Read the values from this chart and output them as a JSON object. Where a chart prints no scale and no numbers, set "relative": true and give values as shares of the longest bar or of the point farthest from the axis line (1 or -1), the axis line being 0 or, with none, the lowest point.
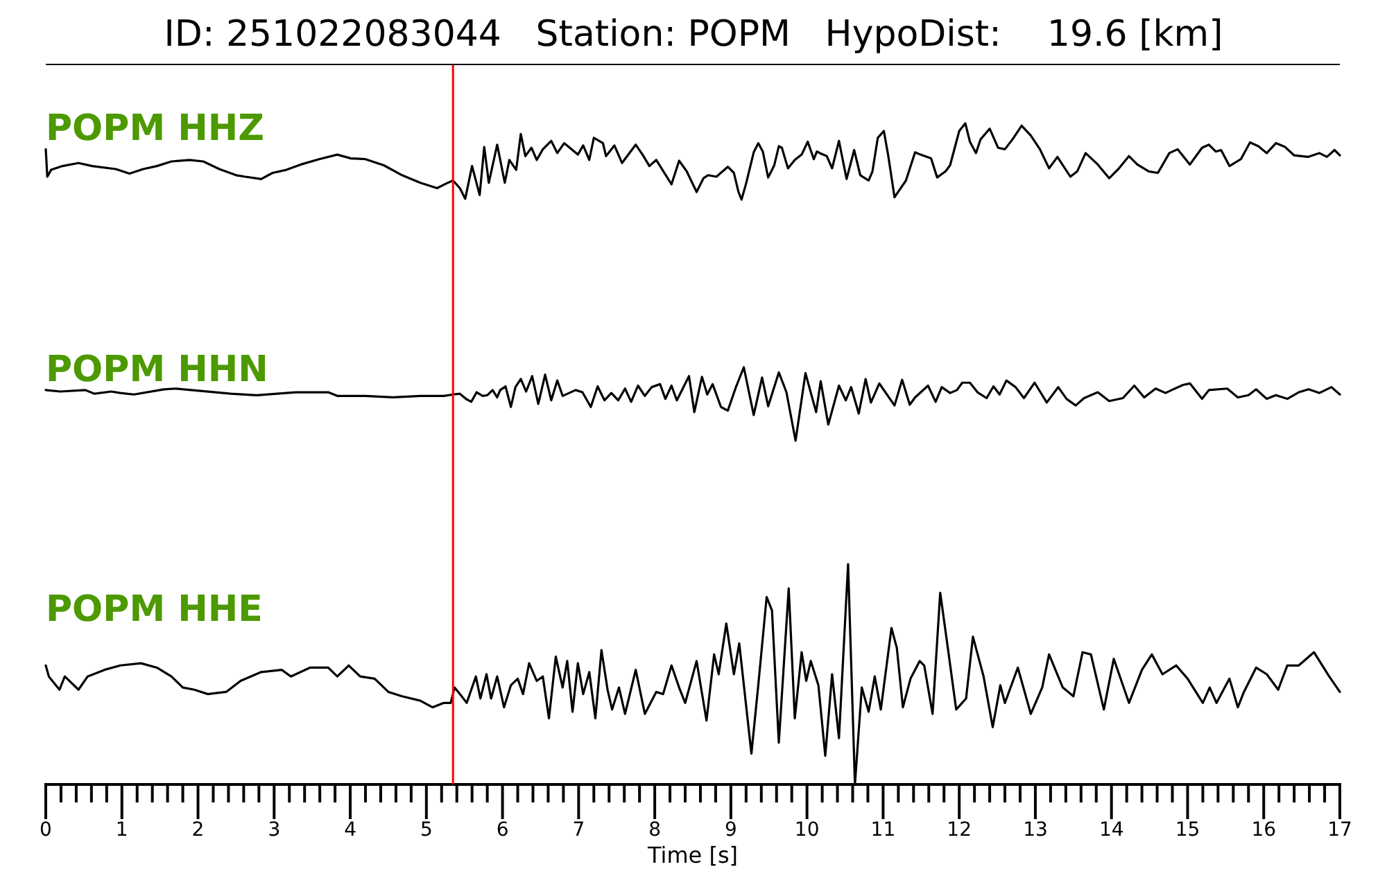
{
  "chart_data": [
    {
      "type": "line",
      "title": "ID: 251022083044   Station: POPM   HypoDist:    19.6 [km]",
      "relative": true,
      "xlim": [
        0,
        17
      ],
      "tick_labels": false,
      "ref_lines": [
        {
          "axis": "x",
          "value": 5.35,
          "color": "#ff0000"
        }
      ],
      "series": [
        {
          "name": "POPM HHZ",
          "color": "#000000",
          "x": [
            0,
            0.02,
            0.07,
            0.22,
            0.43,
            0.61,
            0.92,
            1.1,
            1.28,
            1.46,
            1.65,
            1.89,
            2.07,
            2.28,
            2.5,
            2.62,
            2.83,
            2.98,
            3.16,
            3.35,
            3.59,
            3.83,
            4.01,
            4.2,
            4.44,
            4.68,
            4.92,
            5.14,
            5.26,
            5.35,
            5.44,
            5.51,
            5.6,
            5.7,
            5.76,
            5.82,
            5.93,
            6.03,
            6.09,
            6.18,
            6.24,
            6.3,
            6.38,
            6.45,
            6.53,
            6.64,
            6.72,
            6.81,
            6.99,
            7.06,
            7.14,
            7.2,
            7.32,
            7.36,
            7.47,
            7.57,
            7.75,
            7.84,
            7.93,
            8.02,
            8.22,
            8.32,
            8.42,
            8.55,
            8.64,
            8.7,
            8.81,
            8.96,
            9.04,
            9.1,
            9.14,
            9.2,
            9.3,
            9.36,
            9.42,
            9.49,
            9.57,
            9.63,
            9.67,
            9.75,
            9.84,
            9.93,
            10.01,
            10.09,
            10.13,
            10.19,
            10.26,
            10.33,
            10.42,
            10.52,
            10.62,
            10.7,
            10.81,
            10.86,
            10.93,
            11.01,
            11.07,
            11.15,
            11.21,
            11.3,
            11.42,
            11.49,
            11.63,
            11.71,
            11.82,
            11.88,
            12.0,
            12.08,
            12.14,
            12.22,
            12.28,
            12.4,
            12.51,
            12.6,
            12.7,
            12.82,
            12.94,
            13.06,
            13.18,
            13.29,
            13.46,
            13.55,
            13.66,
            13.82,
            13.97,
            14.09,
            14.23,
            14.34,
            14.49,
            14.61,
            14.76,
            14.87,
            15.03,
            15.19,
            15.28,
            15.37,
            15.44,
            15.55,
            15.7,
            15.82,
            15.93,
            16.04,
            16.16,
            16.28,
            16.4,
            16.58,
            16.73,
            16.83,
            16.93,
            17
          ],
          "values": [
            0.66,
            0.3,
            0.39,
            0.44,
            0.48,
            0.44,
            0.4,
            0.34,
            0.4,
            0.44,
            0.5,
            0.52,
            0.5,
            0.4,
            0.32,
            0.3,
            0.27,
            0.35,
            0.39,
            0.46,
            0.53,
            0.59,
            0.54,
            0.53,
            0.45,
            0.32,
            0.22,
            0.15,
            0.21,
            0.25,
            0.15,
            0.01,
            0.44,
            0.06,
            0.69,
            0.22,
            0.72,
            0.22,
            0.52,
            0.39,
            0.86,
            0.57,
            0.68,
            0.52,
            0.66,
            0.77,
            0.61,
            0.74,
            0.59,
            0.71,
            0.52,
            0.81,
            0.74,
            0.57,
            0.71,
            0.48,
            0.72,
            0.59,
            0.44,
            0.52,
            0.2,
            0.51,
            0.37,
            0.1,
            0.28,
            0.32,
            0.3,
            0.43,
            0.35,
            0.1,
            0.0,
            0.21,
            0.62,
            0.74,
            0.63,
            0.29,
            0.45,
            0.7,
            0.68,
            0.41,
            0.52,
            0.59,
            0.76,
            0.53,
            0.63,
            0.6,
            0.57,
            0.41,
            0.77,
            0.27,
            0.65,
            0.32,
            0.25,
            0.37,
            0.81,
            0.9,
            0.56,
            0.03,
            0.12,
            0.25,
            0.62,
            0.59,
            0.54,
            0.29,
            0.37,
            0.45,
            0.9,
            1.0,
            0.76,
            0.61,
            0.79,
            0.93,
            0.68,
            0.66,
            0.79,
            0.97,
            0.84,
            0.66,
            0.41,
            0.56,
            0.3,
            0.37,
            0.61,
            0.46,
            0.28,
            0.4,
            0.57,
            0.46,
            0.37,
            0.35,
            0.61,
            0.66,
            0.46,
            0.68,
            0.72,
            0.63,
            0.65,
            0.44,
            0.53,
            0.75,
            0.7,
            0.61,
            0.74,
            0.69,
            0.58,
            0.56,
            0.61,
            0.56,
            0.65,
            0.58
          ]
        }
      ]
    },
    {
      "type": "line",
      "relative": true,
      "xlim": [
        0,
        17
      ],
      "tick_labels": false,
      "ref_lines": [
        {
          "axis": "x",
          "value": 5.35,
          "color": "#ff0000"
        }
      ],
      "series": [
        {
          "name": "POPM HHN",
          "color": "#000000",
          "x": [
            0,
            0.19,
            0.52,
            0.64,
            0.86,
            0.98,
            1.16,
            1.55,
            1.71,
            2.01,
            2.43,
            2.77,
            3.28,
            3.71,
            3.83,
            4.2,
            4.56,
            4.92,
            5.23,
            5.35,
            5.44,
            5.52,
            5.59,
            5.66,
            5.74,
            5.8,
            5.87,
            5.93,
            5.97,
            6.04,
            6.11,
            6.17,
            6.24,
            6.31,
            6.39,
            6.47,
            6.56,
            6.64,
            6.72,
            6.79,
            6.96,
            7.05,
            7.16,
            7.25,
            7.34,
            7.43,
            7.52,
            7.61,
            7.69,
            7.78,
            7.87,
            7.96,
            8.07,
            8.14,
            8.22,
            8.29,
            8.45,
            8.52,
            8.62,
            8.69,
            8.76,
            8.87,
            8.96,
            9.07,
            9.17,
            9.3,
            9.41,
            9.49,
            9.63,
            9.73,
            9.85,
            9.98,
            10.12,
            10.18,
            10.28,
            10.42,
            10.51,
            10.58,
            10.68,
            10.77,
            10.84,
            10.95,
            11.15,
            11.25,
            11.35,
            11.42,
            11.59,
            11.69,
            11.77,
            11.88,
            11.97,
            12.04,
            12.14,
            12.24,
            12.36,
            12.45,
            12.53,
            12.62,
            12.74,
            12.85,
            12.99,
            13.15,
            13.3,
            13.41,
            13.53,
            13.64,
            13.82,
            13.97,
            14.15,
            14.3,
            14.43,
            14.58,
            14.71,
            14.79,
            14.94,
            15.03,
            15.19,
            15.28,
            15.52,
            15.66,
            15.8,
            15.9,
            16.04,
            16.16,
            16.31,
            16.46,
            16.59,
            16.73,
            16.89,
            17
          ],
          "values": [
            0.69,
            0.67,
            0.69,
            0.64,
            0.67,
            0.65,
            0.63,
            0.7,
            0.71,
            0.68,
            0.64,
            0.62,
            0.66,
            0.66,
            0.61,
            0.61,
            0.59,
            0.61,
            0.61,
            0.63,
            0.64,
            0.57,
            0.53,
            0.66,
            0.61,
            0.62,
            0.69,
            0.59,
            0.69,
            0.74,
            0.46,
            0.73,
            0.84,
            0.67,
            0.88,
            0.5,
            0.9,
            0.55,
            0.82,
            0.61,
            0.69,
            0.66,
            0.46,
            0.74,
            0.55,
            0.65,
            0.55,
            0.71,
            0.53,
            0.75,
            0.61,
            0.73,
            0.77,
            0.57,
            0.75,
            0.55,
            0.88,
            0.39,
            0.87,
            0.63,
            0.77,
            0.46,
            0.41,
            0.74,
            1.0,
            0.35,
            0.86,
            0.47,
            0.93,
            0.66,
            0.0,
            0.92,
            0.39,
            0.81,
            0.22,
            0.75,
            0.55,
            0.73,
            0.37,
            0.84,
            0.52,
            0.78,
            0.48,
            0.83,
            0.49,
            0.59,
            0.75,
            0.53,
            0.73,
            0.65,
            0.69,
            0.79,
            0.79,
            0.66,
            0.58,
            0.74,
            0.63,
            0.82,
            0.73,
            0.58,
            0.79,
            0.52,
            0.73,
            0.57,
            0.48,
            0.58,
            0.66,
            0.54,
            0.58,
            0.75,
            0.59,
            0.71,
            0.65,
            0.69,
            0.76,
            0.78,
            0.57,
            0.69,
            0.71,
            0.59,
            0.62,
            0.7,
            0.57,
            0.62,
            0.57,
            0.66,
            0.7,
            0.65,
            0.73,
            0.63
          ]
        }
      ]
    },
    {
      "type": "line",
      "relative": true,
      "xlabel": "Time [s]",
      "xlim": [
        0,
        17
      ],
      "tick_labels": "x",
      "xticks": [
        0,
        {
          "value": 0.2,
          "label": null
        },
        {
          "value": 0.4,
          "label": null
        },
        {
          "value": 0.6,
          "label": null
        },
        {
          "value": 0.8,
          "label": null
        },
        1,
        {
          "value": 1.2,
          "label": null
        },
        {
          "value": 1.4,
          "label": null
        },
        {
          "value": 1.6,
          "label": null
        },
        {
          "value": 1.8,
          "label": null
        },
        2,
        {
          "value": 2.2,
          "label": null
        },
        {
          "value": 2.4,
          "label": null
        },
        {
          "value": 2.6,
          "label": null
        },
        {
          "value": 2.8,
          "label": null
        },
        3,
        {
          "value": 3.2,
          "label": null
        },
        {
          "value": 3.4,
          "label": null
        },
        {
          "value": 3.6,
          "label": null
        },
        {
          "value": 3.8,
          "label": null
        },
        4,
        {
          "value": 4.2,
          "label": null
        },
        {
          "value": 4.4,
          "label": null
        },
        {
          "value": 4.6,
          "label": null
        },
        {
          "value": 4.8,
          "label": null
        },
        5,
        {
          "value": 5.2,
          "label": null
        },
        {
          "value": 5.4,
          "label": null
        },
        {
          "value": 5.6,
          "label": null
        },
        {
          "value": 5.8,
          "label": null
        },
        6,
        {
          "value": 6.2,
          "label": null
        },
        {
          "value": 6.4,
          "label": null
        },
        {
          "value": 6.6,
          "label": null
        },
        {
          "value": 6.8,
          "label": null
        },
        7,
        {
          "value": 7.2,
          "label": null
        },
        {
          "value": 7.4,
          "label": null
        },
        {
          "value": 7.6,
          "label": null
        },
        {
          "value": 7.8,
          "label": null
        },
        8,
        {
          "value": 8.2,
          "label": null
        },
        {
          "value": 8.4,
          "label": null
        },
        {
          "value": 8.6,
          "label": null
        },
        {
          "value": 8.8,
          "label": null
        },
        9,
        {
          "value": 9.2,
          "label": null
        },
        {
          "value": 9.4,
          "label": null
        },
        {
          "value": 9.6,
          "label": null
        },
        {
          "value": 9.8,
          "label": null
        },
        10,
        {
          "value": 10.2,
          "label": null
        },
        {
          "value": 10.4,
          "label": null
        },
        {
          "value": 10.6,
          "label": null
        },
        {
          "value": 10.8,
          "label": null
        },
        11,
        {
          "value": 11.2,
          "label": null
        },
        {
          "value": 11.4,
          "label": null
        },
        {
          "value": 11.6,
          "label": null
        },
        {
          "value": 11.8,
          "label": null
        },
        12,
        {
          "value": 12.2,
          "label": null
        },
        {
          "value": 12.4,
          "label": null
        },
        {
          "value": 12.6,
          "label": null
        },
        {
          "value": 12.8,
          "label": null
        },
        13,
        {
          "value": 13.2,
          "label": null
        },
        {
          "value": 13.4,
          "label": null
        },
        {
          "value": 13.6,
          "label": null
        },
        {
          "value": 13.8,
          "label": null
        },
        14,
        {
          "value": 14.2,
          "label": null
        },
        {
          "value": 14.4,
          "label": null
        },
        {
          "value": 14.6,
          "label": null
        },
        {
          "value": 14.8,
          "label": null
        },
        15,
        {
          "value": 15.2,
          "label": null
        },
        {
          "value": 15.4,
          "label": null
        },
        {
          "value": 15.6,
          "label": null
        },
        {
          "value": 15.8,
          "label": null
        },
        16,
        {
          "value": 16.2,
          "label": null
        },
        {
          "value": 16.4,
          "label": null
        },
        {
          "value": 16.6,
          "label": null
        },
        {
          "value": 16.8,
          "label": null
        },
        17
      ],
      "ref_lines": [
        {
          "axis": "x",
          "value": 5.35,
          "color": "#ff0000"
        }
      ],
      "series": [
        {
          "name": "POPM HHE",
          "color": "#000000",
          "x": [
            0,
            0.04,
            0.18,
            0.25,
            0.43,
            0.55,
            0.77,
            0.98,
            1.25,
            1.46,
            1.65,
            1.8,
            1.95,
            2.13,
            2.37,
            2.56,
            2.83,
            3.1,
            3.22,
            3.47,
            3.71,
            3.83,
            3.98,
            4.13,
            4.32,
            4.5,
            4.68,
            4.92,
            5.08,
            5.23,
            5.32,
            5.37,
            5.44,
            5.53,
            5.65,
            5.71,
            5.79,
            5.85,
            5.93,
            6.02,
            6.11,
            6.2,
            6.27,
            6.35,
            6.45,
            6.53,
            6.61,
            6.7,
            6.79,
            6.85,
            6.92,
            6.99,
            7.06,
            7.14,
            7.22,
            7.3,
            7.38,
            7.44,
            7.53,
            7.61,
            7.75,
            7.87,
            8.02,
            8.11,
            8.22,
            8.32,
            8.4,
            8.55,
            8.68,
            8.78,
            8.84,
            8.94,
            9.04,
            9.11,
            9.27,
            9.36,
            9.47,
            9.54,
            9.63,
            9.76,
            9.84,
            9.93,
            9.99,
            10.05,
            10.15,
            10.24,
            10.33,
            10.42,
            10.54,
            10.63,
            10.72,
            10.81,
            10.89,
            10.97,
            11.11,
            11.18,
            11.26,
            11.36,
            11.48,
            11.54,
            11.65,
            11.75,
            11.85,
            11.96,
            12.09,
            12.18,
            12.32,
            12.44,
            12.54,
            12.6,
            12.77,
            12.94,
            13.09,
            13.18,
            13.36,
            13.5,
            13.62,
            13.73,
            13.9,
            14.03,
            14.23,
            14.4,
            14.53,
            14.67,
            14.85,
            15.0,
            15.2,
            15.29,
            15.38,
            15.55,
            15.66,
            15.74,
            15.9,
            16.04,
            16.19,
            16.31,
            16.46,
            16.66,
            16.86,
            17
          ],
          "values": [
            0.54,
            0.49,
            0.43,
            0.49,
            0.43,
            0.49,
            0.52,
            0.54,
            0.55,
            0.53,
            0.49,
            0.44,
            0.43,
            0.41,
            0.42,
            0.47,
            0.51,
            0.52,
            0.49,
            0.53,
            0.53,
            0.49,
            0.54,
            0.49,
            0.48,
            0.42,
            0.4,
            0.38,
            0.35,
            0.37,
            0.37,
            0.44,
            0.41,
            0.37,
            0.49,
            0.39,
            0.5,
            0.39,
            0.49,
            0.35,
            0.45,
            0.48,
            0.41,
            0.55,
            0.47,
            0.49,
            0.3,
            0.58,
            0.44,
            0.56,
            0.33,
            0.55,
            0.41,
            0.51,
            0.3,
            0.61,
            0.43,
            0.34,
            0.44,
            0.32,
            0.52,
            0.32,
            0.42,
            0.41,
            0.54,
            0.44,
            0.37,
            0.56,
            0.29,
            0.59,
            0.5,
            0.73,
            0.5,
            0.64,
            0.14,
            0.45,
            0.85,
            0.79,
            0.19,
            0.89,
            0.3,
            0.6,
            0.47,
            0.56,
            0.45,
            0.13,
            0.5,
            0.21,
            1.0,
            0.0,
            0.44,
            0.33,
            0.49,
            0.34,
            0.71,
            0.62,
            0.35,
            0.48,
            0.56,
            0.54,
            0.32,
            0.87,
            0.62,
            0.34,
            0.39,
            0.67,
            0.49,
            0.26,
            0.45,
            0.37,
            0.53,
            0.32,
            0.44,
            0.59,
            0.44,
            0.4,
            0.6,
            0.59,
            0.34,
            0.57,
            0.37,
            0.52,
            0.59,
            0.5,
            0.54,
            0.48,
            0.37,
            0.44,
            0.37,
            0.48,
            0.35,
            0.42,
            0.53,
            0.5,
            0.43,
            0.54,
            0.54,
            0.6,
            0.49,
            0.42
          ]
        }
      ]
    }
  ]
}
